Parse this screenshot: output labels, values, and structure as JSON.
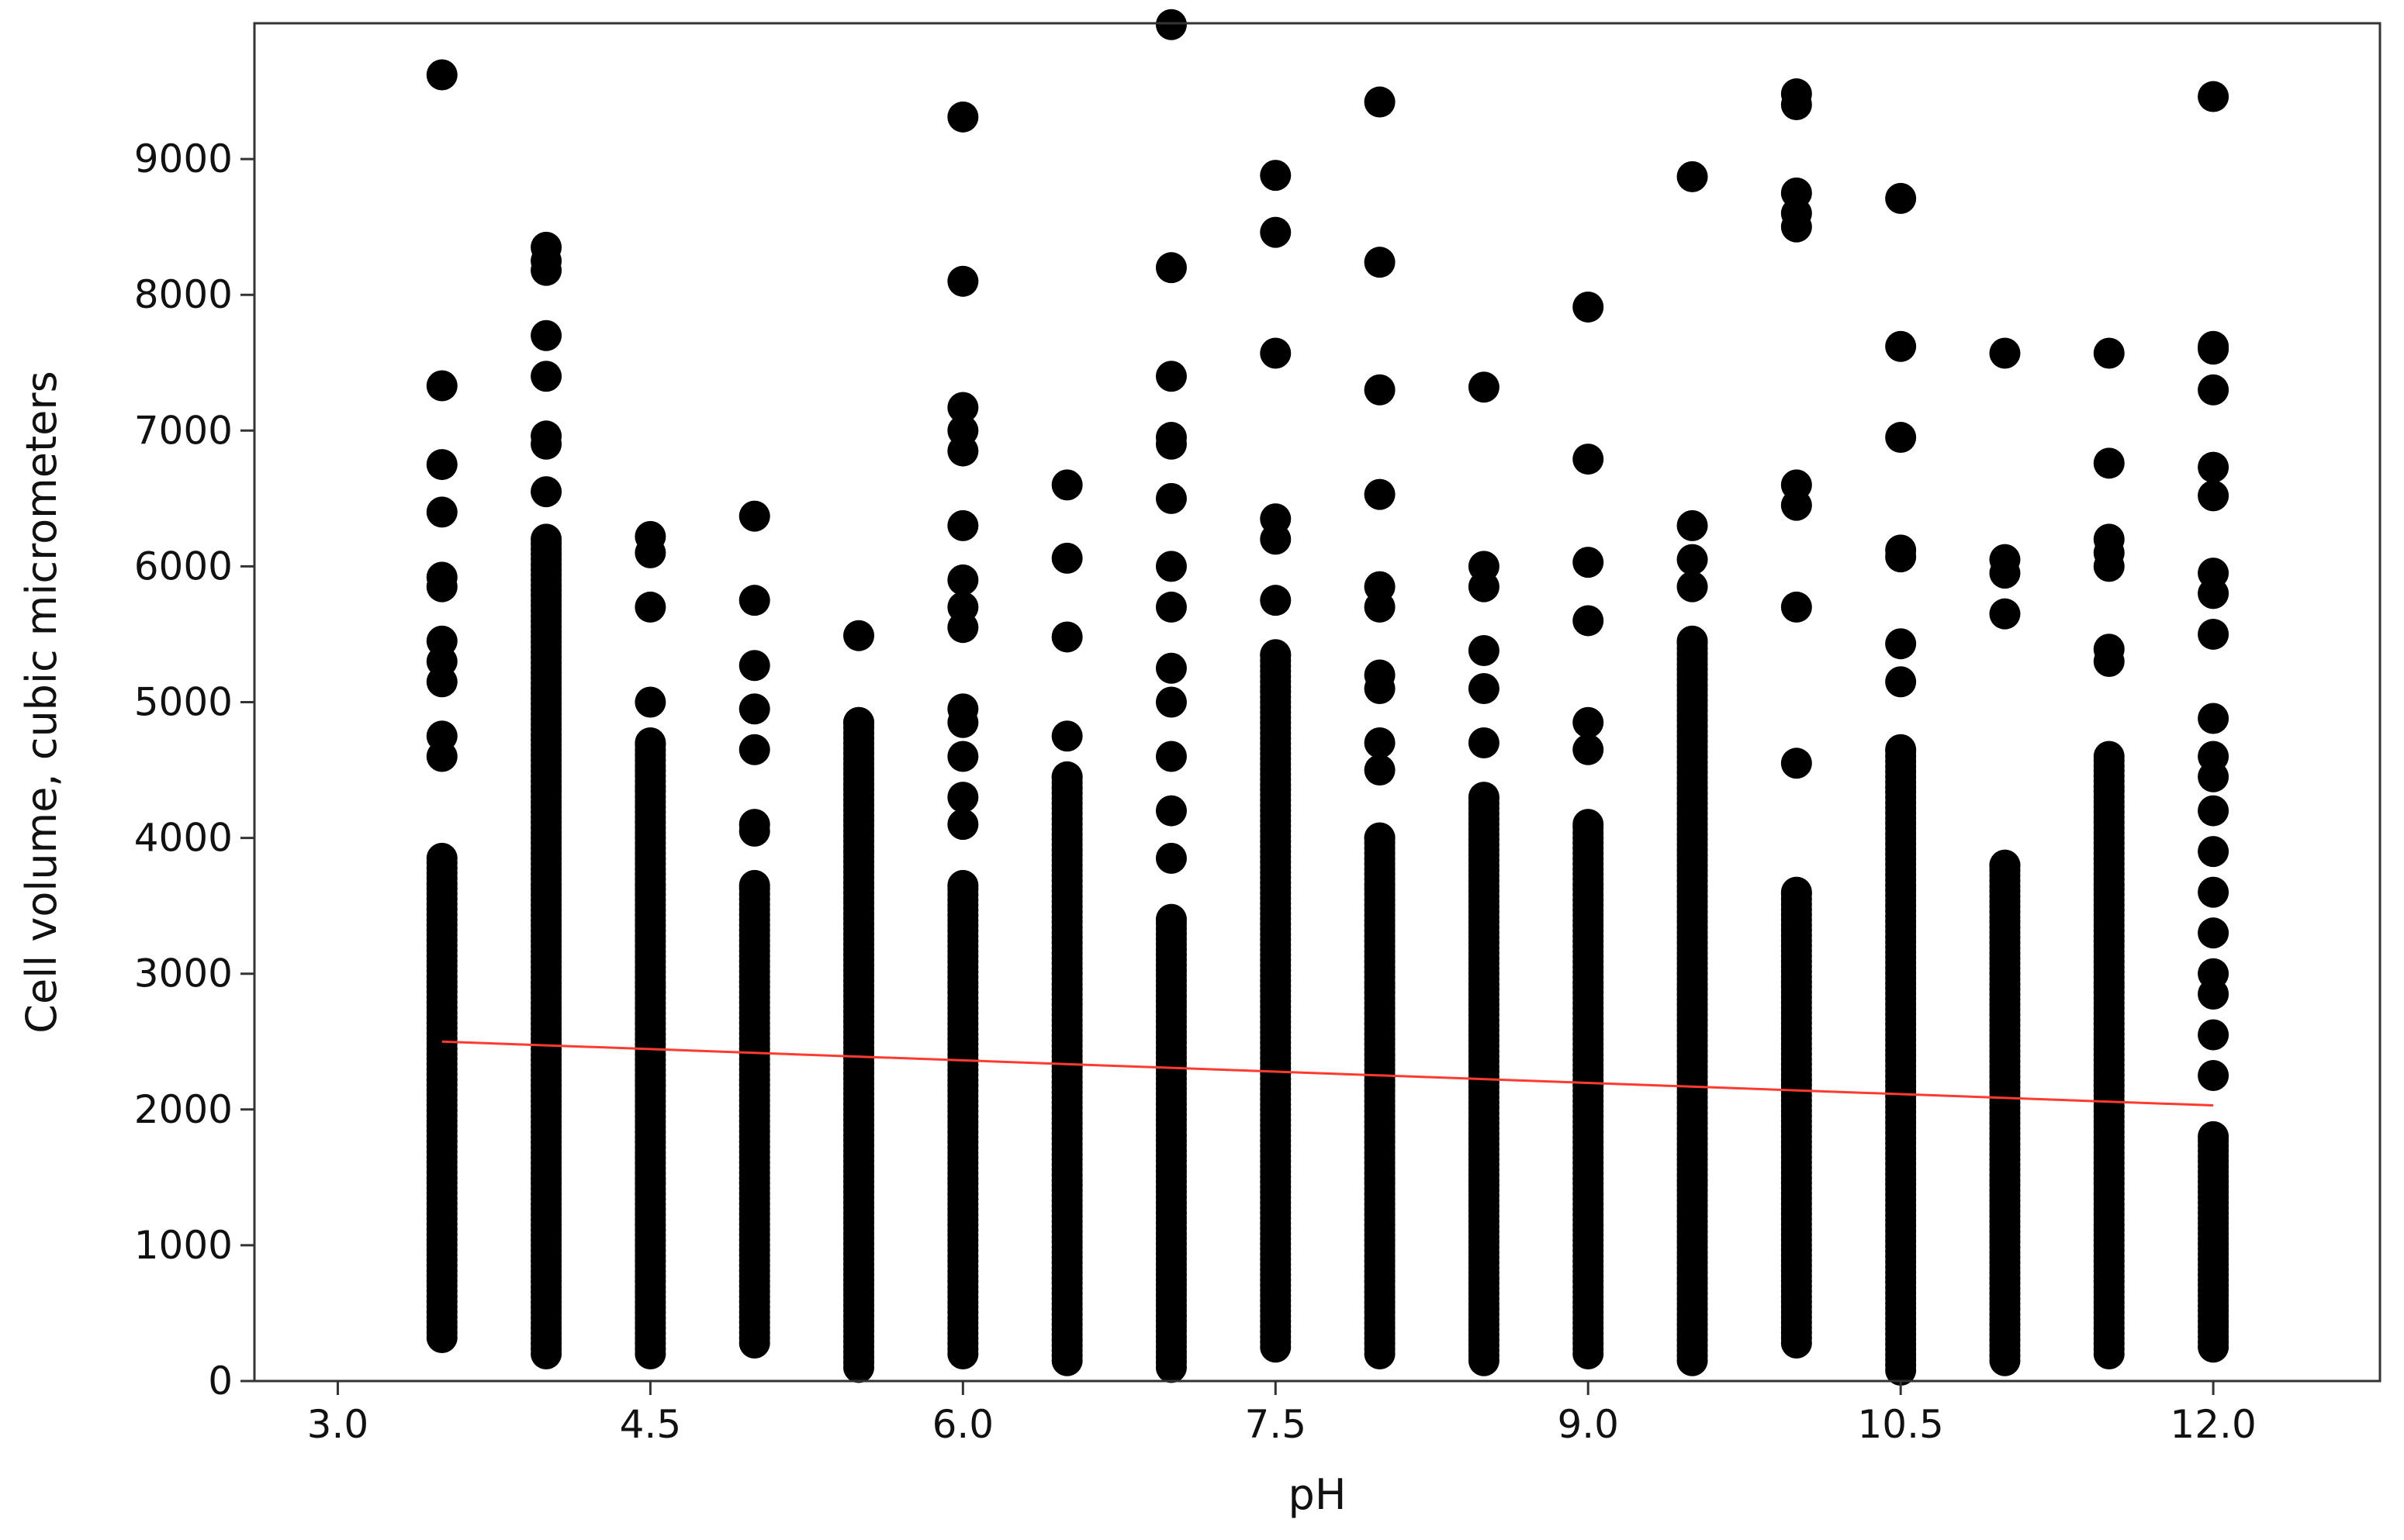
{
  "chart_data": {
    "type": "scatter",
    "title": "",
    "xlabel": "pH",
    "ylabel": "Cell volume, cubic micrometers",
    "xlim": [
      2.6,
      12.8
    ],
    "ylim": [
      0,
      10000
    ],
    "xticks": [
      "3.0",
      "4.5",
      "6.0",
      "7.5",
      "9.0",
      "10.5",
      "12.0"
    ],
    "xtick_values": [
      3.0,
      4.5,
      6.0,
      7.5,
      9.0,
      10.5,
      12.0
    ],
    "yticks": [
      "0",
      "1000",
      "2000",
      "3000",
      "4000",
      "5000",
      "6000",
      "7000",
      "8000",
      "9000"
    ],
    "ytick_values": [
      0,
      1000,
      2000,
      3000,
      4000,
      5000,
      6000,
      7000,
      8000,
      9000
    ],
    "grid": false,
    "legend": "none",
    "marker_color": "#000000",
    "fit_line_color": "#ff3b30",
    "fit_line": {
      "x": [
        3.5,
        12.0
      ],
      "y": [
        2500,
        2030
      ]
    },
    "groups": [
      {
        "x": 3.5,
        "y_range": [
          320,
          3850
        ],
        "outliers": [
          4600,
          4750,
          5150,
          5300,
          5450,
          5850,
          5920,
          6400,
          6750,
          7330,
          9620
        ]
      },
      {
        "x": 4.0,
        "y_range": [
          200,
          6200
        ],
        "outliers": [
          6550,
          6900,
          6960,
          7400,
          7700,
          8180,
          8250,
          8350
        ]
      },
      {
        "x": 4.5,
        "y_range": [
          200,
          4700
        ],
        "outliers": [
          5000,
          5700,
          6100,
          6220
        ]
      },
      {
        "x": 5.0,
        "y_range": [
          280,
          3650
        ],
        "outliers": [
          4050,
          4100,
          4650,
          4950,
          5270,
          5750,
          6370
        ]
      },
      {
        "x": 5.5,
        "y_range": [
          100,
          4850
        ],
        "outliers": [
          5490
        ]
      },
      {
        "x": 6.0,
        "y_range": [
          200,
          3650
        ],
        "outliers": [
          4100,
          4300,
          4600,
          4850,
          4950,
          5550,
          5700,
          5900,
          6300,
          6850,
          7000,
          7170,
          8100,
          9310
        ]
      },
      {
        "x": 6.5,
        "y_range": [
          150,
          4450
        ],
        "outliers": [
          4750,
          5480,
          6060,
          6600
        ]
      },
      {
        "x": 7.0,
        "y_range": [
          100,
          3400
        ],
        "outliers": [
          3850,
          4200,
          4600,
          5000,
          5250,
          5700,
          6000,
          6500,
          6900,
          6950,
          7400,
          8200,
          9990
        ]
      },
      {
        "x": 7.5,
        "y_range": [
          250,
          5350
        ],
        "outliers": [
          5750,
          6200,
          6350,
          7570,
          8460,
          8880
        ]
      },
      {
        "x": 8.0,
        "y_range": [
          200,
          4000
        ],
        "outliers": [
          4500,
          4700,
          5100,
          5200,
          5700,
          5850,
          6530,
          7300,
          8240,
          9420
        ]
      },
      {
        "x": 8.5,
        "y_range": [
          150,
          4300
        ],
        "outliers": [
          4700,
          5100,
          5380,
          5850,
          6000,
          7320
        ]
      },
      {
        "x": 9.0,
        "y_range": [
          200,
          4100
        ],
        "outliers": [
          4650,
          4850,
          5600,
          6030,
          6790,
          7910
        ]
      },
      {
        "x": 9.5,
        "y_range": [
          150,
          5450
        ],
        "outliers": [
          5850,
          6050,
          6300,
          8870
        ]
      },
      {
        "x": 10.0,
        "y_range": [
          280,
          3600
        ],
        "outliers": [
          4550,
          5700,
          6450,
          6600,
          8500,
          8600,
          8750,
          9400,
          9480
        ]
      },
      {
        "x": 10.5,
        "y_range": [
          80,
          4650
        ],
        "outliers": [
          5150,
          5430,
          6070,
          6120,
          6950,
          7620,
          8710
        ]
      },
      {
        "x": 11.0,
        "y_range": [
          150,
          3800
        ],
        "outliers": [
          5650,
          5950,
          6050,
          7570
        ]
      },
      {
        "x": 11.5,
        "y_range": [
          200,
          4600
        ],
        "outliers": [
          5300,
          5390,
          6000,
          6100,
          6200,
          6760,
          7570
        ]
      },
      {
        "x": 12.0,
        "y_range": [
          250,
          1800
        ],
        "outliers": [
          2250,
          2550,
          2850,
          3000,
          3300,
          3600,
          3900,
          4200,
          4450,
          4600,
          4880,
          5500,
          5800,
          5950,
          6520,
          6730,
          7300,
          7600,
          7620,
          9460
        ]
      }
    ]
  }
}
